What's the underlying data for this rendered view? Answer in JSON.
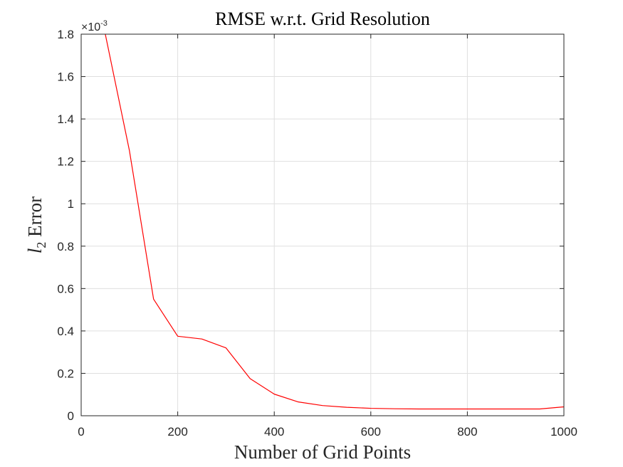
{
  "chart_data": {
    "type": "line",
    "title": "RMSE w.r.t. Grid Resolution",
    "xlabel": "Number of Grid Points",
    "ylabel_base": "l",
    "ylabel_subscript": "2",
    "ylabel_rest": " Error",
    "y_exponent_prefix": "×10",
    "y_exponent_power": "-3",
    "xlim": [
      0,
      1000
    ],
    "ylim": [
      0,
      1.8
    ],
    "y_scale_note": "values in units of 10^-3",
    "grid": true,
    "x_ticks": [
      0,
      200,
      400,
      600,
      800,
      1000
    ],
    "x_tick_labels": [
      "0",
      "200",
      "400",
      "600",
      "800",
      "1000"
    ],
    "y_ticks": [
      0,
      0.2,
      0.4,
      0.6,
      0.8,
      1,
      1.2,
      1.4,
      1.6,
      1.8
    ],
    "y_tick_labels": [
      "0",
      "0.2",
      "0.4",
      "0.6",
      "0.8",
      "1",
      "1.2",
      "1.4",
      "1.6",
      "1.8"
    ],
    "series": [
      {
        "color": "#ff0000",
        "x": [
          50,
          100,
          150,
          200,
          250,
          300,
          350,
          400,
          450,
          500,
          550,
          600,
          650,
          700,
          750,
          800,
          850,
          900,
          950,
          1000
        ],
        "y": [
          1.8,
          1.25,
          0.55,
          0.375,
          0.362,
          0.32,
          0.175,
          0.102,
          0.065,
          0.048,
          0.04,
          0.035,
          0.033,
          0.032,
          0.032,
          0.032,
          0.032,
          0.032,
          0.032,
          0.042
        ]
      }
    ]
  }
}
